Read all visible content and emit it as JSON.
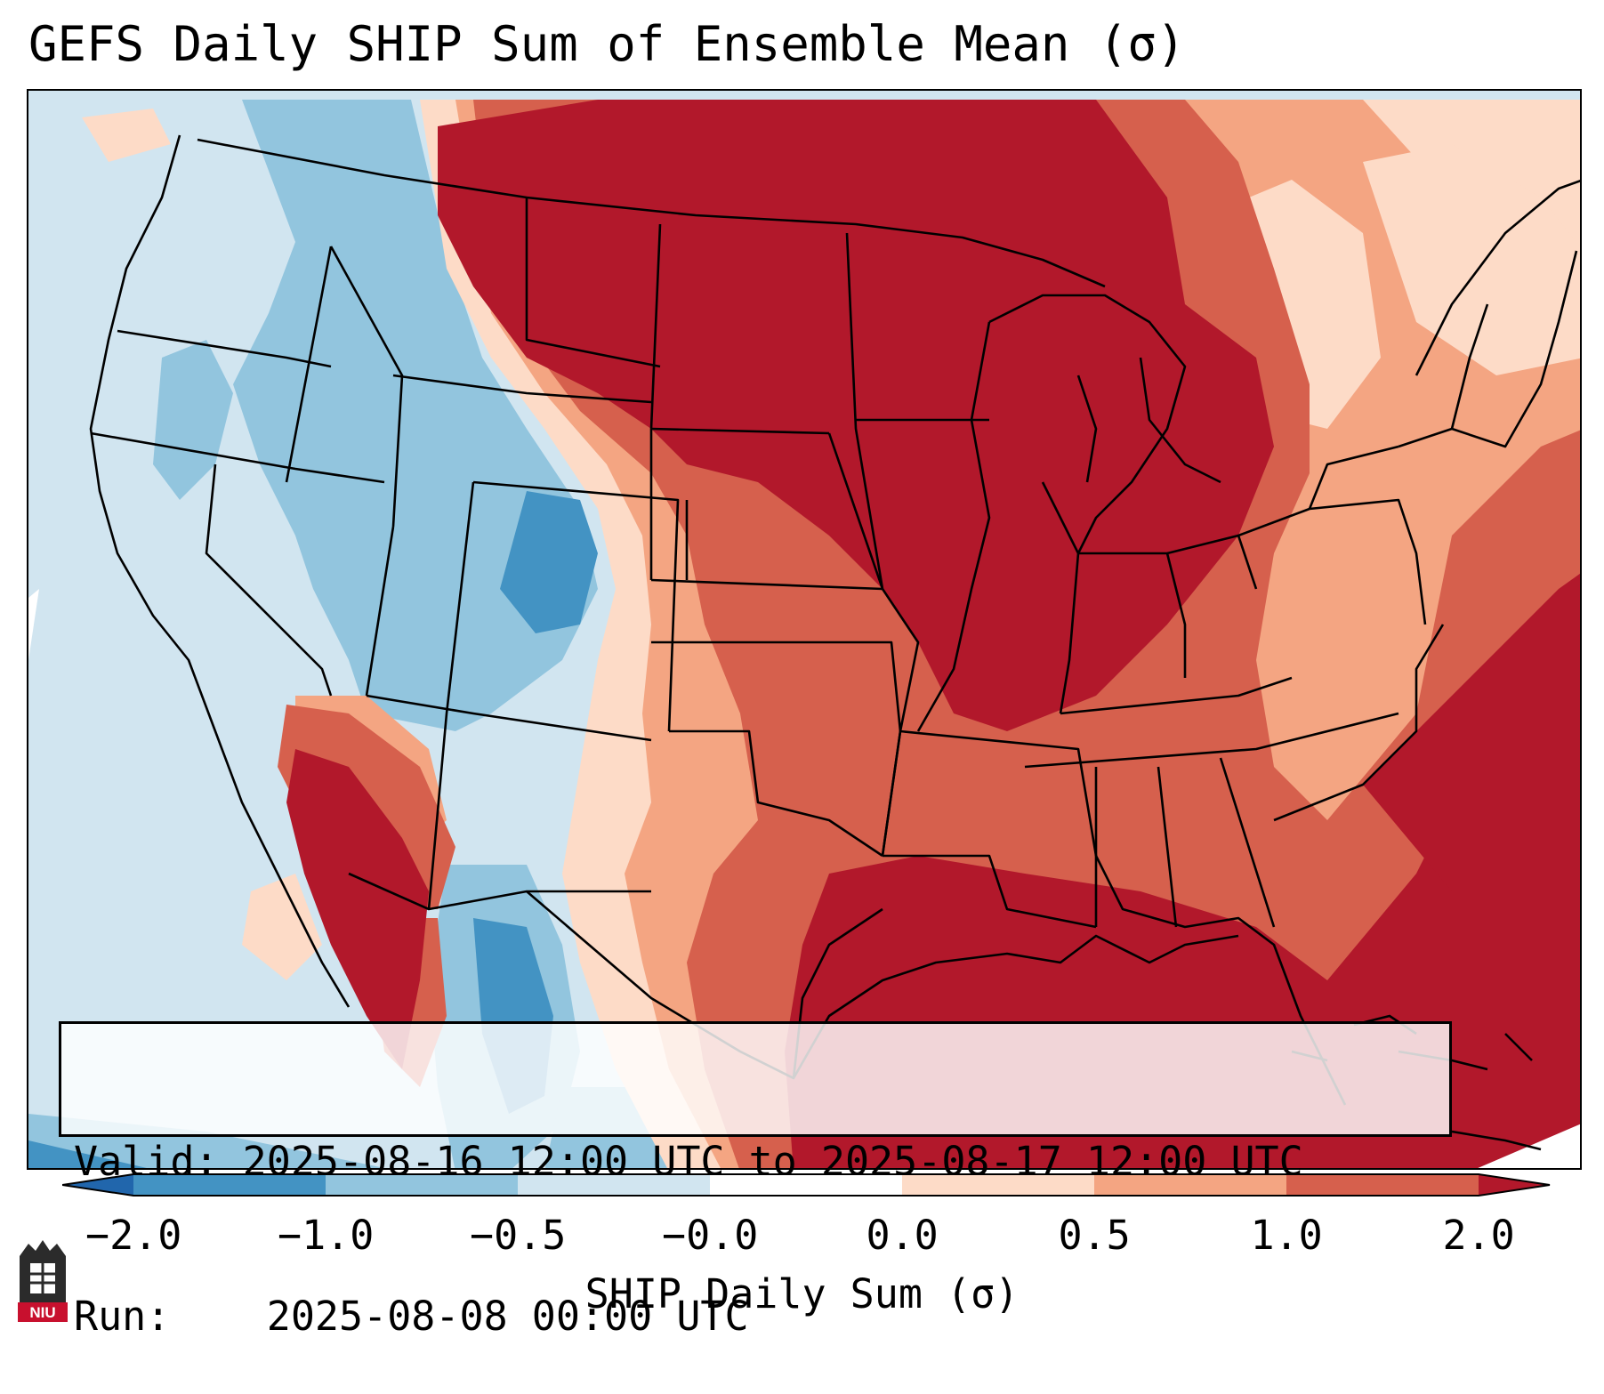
{
  "title": "GEFS Daily SHIP Sum of Ensemble Mean (σ)",
  "info": {
    "valid_label": "Valid:",
    "valid_value": "2025-08-16 12:00 UTC to 2025-08-17 12:00 UTC",
    "run_label": "Run:",
    "run_value": "2025-08-08 00:00 UTC"
  },
  "colorbar": {
    "label": "SHIP Daily Sum (σ)",
    "ticks": [
      "−2.0",
      "−1.0",
      "−0.5",
      "−0.0",
      "0.0",
      "0.5",
      "1.0",
      "2.0"
    ],
    "colors": [
      "#2166ac",
      "#4393c3",
      "#92c5de",
      "#d1e5f0",
      "#ffffff",
      "#fddbc7",
      "#f4a582",
      "#d6604d",
      "#b2182b"
    ]
  },
  "logo": {
    "text": "NIU",
    "color": "#c8102e"
  }
}
